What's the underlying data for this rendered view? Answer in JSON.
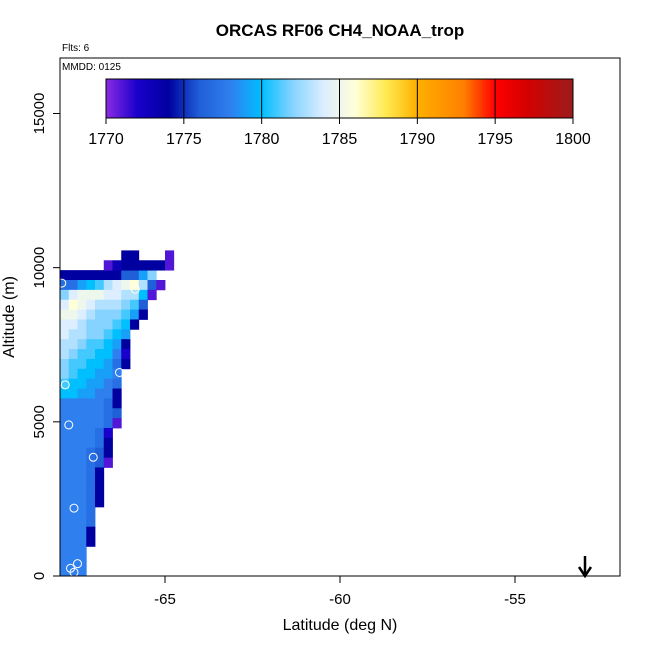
{
  "chart_data": {
    "type": "heatmap",
    "title": "ORCAS RF06 CH4_NOAA_trop",
    "flights_label": "Flts: 6",
    "date_label": "MMDD: 0125",
    "xlabel": "Latitude (deg N)",
    "ylabel": "Altitude (m)",
    "xlim": [
      -68,
      -52
    ],
    "ylim": [
      0,
      16800
    ],
    "x_ticks": [
      {
        "value": -65,
        "label": "-65"
      },
      {
        "value": -60,
        "label": "-60"
      },
      {
        "value": -55,
        "label": "-55"
      }
    ],
    "y_ticks": [
      {
        "value": 0,
        "label": "0"
      },
      {
        "value": 5000,
        "label": "5000"
      },
      {
        "value": 10000,
        "label": "10000"
      },
      {
        "value": 15000,
        "label": "15000"
      }
    ],
    "colorbar": {
      "min": 1770,
      "max": 1800,
      "ticks": [
        {
          "value": 1770,
          "label": "1770"
        },
        {
          "value": 1775,
          "label": "1775"
        },
        {
          "value": 1780,
          "label": "1780"
        },
        {
          "value": 1785,
          "label": "1785"
        },
        {
          "value": 1790,
          "label": "1790"
        },
        {
          "value": 1795,
          "label": "1795"
        },
        {
          "value": 1800,
          "label": "1800"
        }
      ],
      "stops": [
        {
          "value": 1770,
          "color": "#8a2be2"
        },
        {
          "value": 1772,
          "color": "#1a00cc"
        },
        {
          "value": 1774,
          "color": "#0000a0"
        },
        {
          "value": 1776,
          "color": "#1f5fd8"
        },
        {
          "value": 1778,
          "color": "#2f7fef"
        },
        {
          "value": 1780,
          "color": "#00bfff"
        },
        {
          "value": 1782,
          "color": "#87d3ff"
        },
        {
          "value": 1784,
          "color": "#dceeff"
        },
        {
          "value": 1786,
          "color": "#ffffd8"
        },
        {
          "value": 1788,
          "color": "#ffea50"
        },
        {
          "value": 1790,
          "color": "#ffb000"
        },
        {
          "value": 1793,
          "color": "#ff7f00"
        },
        {
          "value": 1795,
          "color": "#ff0000"
        },
        {
          "value": 1797,
          "color": "#d50000"
        },
        {
          "value": 1800,
          "color": "#9b1c1c"
        }
      ]
    },
    "cell_size": {
      "lat": 0.25,
      "alt": 320
    },
    "cells": [
      [
        -67.875,
        9600,
        1774
      ],
      [
        -67.625,
        9600,
        1774
      ],
      [
        -67.375,
        9600,
        1774
      ],
      [
        -67.125,
        9600,
        1774
      ],
      [
        -66.875,
        9600,
        1774
      ],
      [
        -66.625,
        9600,
        1774
      ],
      [
        -66.375,
        9600,
        1774
      ],
      [
        -66.125,
        9600,
        1776
      ],
      [
        -65.875,
        9600,
        1776
      ],
      [
        -65.625,
        9600,
        1779
      ],
      [
        -65.375,
        9600,
        1782
      ],
      [
        -66.625,
        9920,
        1771
      ],
      [
        -66.375,
        9920,
        1773
      ],
      [
        -66.125,
        9920,
        1774
      ],
      [
        -65.875,
        9920,
        1774
      ],
      [
        -65.625,
        9920,
        1774
      ],
      [
        -65.375,
        9920,
        1774
      ],
      [
        -65.125,
        9920,
        1774
      ],
      [
        -64.875,
        9920,
        1771
      ],
      [
        -66.125,
        10240,
        1774
      ],
      [
        -65.875,
        10240,
        1774
      ],
      [
        -64.875,
        10240,
        1771
      ],
      [
        -67.875,
        9280,
        1777
      ],
      [
        -67.625,
        9280,
        1777
      ],
      [
        -67.375,
        9280,
        1779
      ],
      [
        -67.125,
        9280,
        1780
      ],
      [
        -66.875,
        9280,
        1781
      ],
      [
        -66.625,
        9280,
        1783
      ],
      [
        -66.375,
        9280,
        1784
      ],
      [
        -66.125,
        9280,
        1785
      ],
      [
        -65.875,
        9280,
        1786
      ],
      [
        -65.625,
        9280,
        1783
      ],
      [
        -65.375,
        9280,
        1776
      ],
      [
        -65.125,
        9280,
        1771
      ],
      [
        -67.875,
        8960,
        1782
      ],
      [
        -67.625,
        8960,
        1784
      ],
      [
        -67.375,
        8960,
        1785
      ],
      [
        -67.125,
        8960,
        1785
      ],
      [
        -66.875,
        8960,
        1785
      ],
      [
        -66.625,
        8960,
        1784
      ],
      [
        -66.375,
        8960,
        1784
      ],
      [
        -66.125,
        8960,
        1783
      ],
      [
        -65.875,
        8960,
        1783
      ],
      [
        -65.625,
        8960,
        1780
      ],
      [
        -65.375,
        8960,
        1771
      ],
      [
        -67.875,
        8640,
        1784
      ],
      [
        -67.625,
        8640,
        1786
      ],
      [
        -67.375,
        8640,
        1785
      ],
      [
        -67.125,
        8640,
        1784
      ],
      [
        -66.875,
        8640,
        1783
      ],
      [
        -66.625,
        8640,
        1783
      ],
      [
        -66.375,
        8640,
        1783
      ],
      [
        -66.125,
        8640,
        1782
      ],
      [
        -65.875,
        8640,
        1781
      ],
      [
        -65.625,
        8640,
        1776
      ],
      [
        -67.875,
        8320,
        1785
      ],
      [
        -67.625,
        8320,
        1785
      ],
      [
        -67.375,
        8320,
        1784
      ],
      [
        -67.125,
        8320,
        1783
      ],
      [
        -66.875,
        8320,
        1782
      ],
      [
        -66.625,
        8320,
        1782
      ],
      [
        -66.375,
        8320,
        1782
      ],
      [
        -66.125,
        8320,
        1781
      ],
      [
        -65.875,
        8320,
        1779
      ],
      [
        -65.625,
        8320,
        1774
      ],
      [
        -67.875,
        8000,
        1784
      ],
      [
        -67.625,
        8000,
        1784
      ],
      [
        -67.375,
        8000,
        1783
      ],
      [
        -67.125,
        8000,
        1782
      ],
      [
        -66.875,
        8000,
        1782
      ],
      [
        -66.625,
        8000,
        1782
      ],
      [
        -66.375,
        8000,
        1781
      ],
      [
        -66.125,
        8000,
        1780
      ],
      [
        -65.875,
        8000,
        1774
      ],
      [
        -67.875,
        7680,
        1784
      ],
      [
        -67.625,
        7680,
        1783
      ],
      [
        -67.375,
        7680,
        1783
      ],
      [
        -67.125,
        7680,
        1782
      ],
      [
        -66.875,
        7680,
        1782
      ],
      [
        -66.625,
        7680,
        1781
      ],
      [
        -66.375,
        7680,
        1780
      ],
      [
        -66.125,
        7680,
        1779
      ],
      [
        -67.875,
        7360,
        1783
      ],
      [
        -67.625,
        7360,
        1783
      ],
      [
        -67.375,
        7360,
        1782
      ],
      [
        -67.125,
        7360,
        1781
      ],
      [
        -66.875,
        7360,
        1781
      ],
      [
        -66.625,
        7360,
        1780
      ],
      [
        -66.375,
        7360,
        1779
      ],
      [
        -66.125,
        7360,
        1774
      ],
      [
        -67.875,
        7040,
        1783
      ],
      [
        -67.625,
        7040,
        1782
      ],
      [
        -67.375,
        7040,
        1781
      ],
      [
        -67.125,
        7040,
        1781
      ],
      [
        -66.875,
        7040,
        1780
      ],
      [
        -66.625,
        7040,
        1780
      ],
      [
        -66.375,
        7040,
        1778
      ],
      [
        -66.125,
        7040,
        1772
      ],
      [
        -67.875,
        6720,
        1782
      ],
      [
        -67.625,
        6720,
        1781
      ],
      [
        -67.375,
        6720,
        1781
      ],
      [
        -67.125,
        6720,
        1780
      ],
      [
        -66.875,
        6720,
        1780
      ],
      [
        -66.625,
        6720,
        1779
      ],
      [
        -66.375,
        6720,
        1777
      ],
      [
        -66.125,
        6720,
        1774
      ],
      [
        -67.875,
        6400,
        1782
      ],
      [
        -67.625,
        6400,
        1781
      ],
      [
        -67.375,
        6400,
        1780
      ],
      [
        -67.125,
        6400,
        1780
      ],
      [
        -66.875,
        6400,
        1779
      ],
      [
        -66.625,
        6400,
        1779
      ],
      [
        -66.375,
        6400,
        1778
      ],
      [
        -67.875,
        6080,
        1781
      ],
      [
        -67.625,
        6080,
        1780
      ],
      [
        -67.375,
        6080,
        1780
      ],
      [
        -67.125,
        6080,
        1779
      ],
      [
        -66.875,
        6080,
        1779
      ],
      [
        -66.625,
        6080,
        1778
      ],
      [
        -66.375,
        6080,
        1777
      ],
      [
        -67.875,
        5760,
        1780
      ],
      [
        -67.625,
        5760,
        1780
      ],
      [
        -67.375,
        5760,
        1779
      ],
      [
        -67.125,
        5760,
        1779
      ],
      [
        -66.875,
        5760,
        1778
      ],
      [
        -66.625,
        5760,
        1778
      ],
      [
        -66.375,
        5760,
        1774
      ],
      [
        -67.875,
        5440,
        1778
      ],
      [
        -67.625,
        5440,
        1778
      ],
      [
        -67.375,
        5440,
        1778
      ],
      [
        -67.125,
        5440,
        1778
      ],
      [
        -66.875,
        5440,
        1778
      ],
      [
        -66.625,
        5440,
        1777
      ],
      [
        -66.375,
        5440,
        1774
      ],
      [
        -67.875,
        5120,
        1778
      ],
      [
        -67.625,
        5120,
        1778
      ],
      [
        -67.375,
        5120,
        1778
      ],
      [
        -67.125,
        5120,
        1778
      ],
      [
        -66.875,
        5120,
        1778
      ],
      [
        -66.625,
        5120,
        1777
      ],
      [
        -66.375,
        5120,
        1776
      ],
      [
        -67.875,
        4800,
        1778
      ],
      [
        -67.625,
        4800,
        1778
      ],
      [
        -67.375,
        4800,
        1778
      ],
      [
        -67.125,
        4800,
        1778
      ],
      [
        -66.875,
        4800,
        1778
      ],
      [
        -66.625,
        4800,
        1777
      ],
      [
        -66.375,
        4800,
        1771
      ],
      [
        -67.875,
        4480,
        1778
      ],
      [
        -67.625,
        4480,
        1778
      ],
      [
        -67.375,
        4480,
        1778
      ],
      [
        -67.125,
        4480,
        1778
      ],
      [
        -66.875,
        4480,
        1777
      ],
      [
        -66.625,
        4480,
        1772
      ],
      [
        -67.875,
        4160,
        1778
      ],
      [
        -67.625,
        4160,
        1778
      ],
      [
        -67.375,
        4160,
        1778
      ],
      [
        -67.125,
        4160,
        1778
      ],
      [
        -66.875,
        4160,
        1777
      ],
      [
        -66.625,
        4160,
        1774
      ],
      [
        -67.875,
        3840,
        1778
      ],
      [
        -67.625,
        3840,
        1778
      ],
      [
        -67.375,
        3840,
        1778
      ],
      [
        -67.125,
        3840,
        1777
      ],
      [
        -66.875,
        3840,
        1776
      ],
      [
        -66.625,
        3840,
        1774
      ],
      [
        -67.875,
        3520,
        1778
      ],
      [
        -67.625,
        3520,
        1778
      ],
      [
        -67.375,
        3520,
        1778
      ],
      [
        -67.125,
        3520,
        1777
      ],
      [
        -66.875,
        3520,
        1776
      ],
      [
        -66.625,
        3520,
        1771
      ],
      [
        -67.875,
        3200,
        1778
      ],
      [
        -67.625,
        3200,
        1778
      ],
      [
        -67.375,
        3200,
        1778
      ],
      [
        -67.125,
        3200,
        1777
      ],
      [
        -66.875,
        3200,
        1774
      ],
      [
        -67.875,
        2880,
        1778
      ],
      [
        -67.625,
        2880,
        1778
      ],
      [
        -67.375,
        2880,
        1778
      ],
      [
        -67.125,
        2880,
        1777
      ],
      [
        -66.875,
        2880,
        1774
      ],
      [
        -67.875,
        2560,
        1778
      ],
      [
        -67.625,
        2560,
        1778
      ],
      [
        -67.375,
        2560,
        1778
      ],
      [
        -67.125,
        2560,
        1777
      ],
      [
        -66.875,
        2560,
        1774
      ],
      [
        -67.875,
        2240,
        1778
      ],
      [
        -67.625,
        2240,
        1778
      ],
      [
        -67.375,
        2240,
        1778
      ],
      [
        -67.125,
        2240,
        1777
      ],
      [
        -66.875,
        2240,
        1774
      ],
      [
        -67.875,
        1920,
        1778
      ],
      [
        -67.625,
        1920,
        1778
      ],
      [
        -67.375,
        1920,
        1778
      ],
      [
        -67.125,
        1920,
        1777
      ],
      [
        -67.875,
        1600,
        1778
      ],
      [
        -67.625,
        1600,
        1778
      ],
      [
        -67.375,
        1600,
        1778
      ],
      [
        -67.125,
        1600,
        1777
      ],
      [
        -67.875,
        1280,
        1778
      ],
      [
        -67.625,
        1280,
        1778
      ],
      [
        -67.375,
        1280,
        1778
      ],
      [
        -67.125,
        1280,
        1774
      ],
      [
        -67.875,
        960,
        1778
      ],
      [
        -67.625,
        960,
        1778
      ],
      [
        -67.375,
        960,
        1778
      ],
      [
        -67.125,
        960,
        1774
      ],
      [
        -67.875,
        640,
        1778
      ],
      [
        -67.625,
        640,
        1778
      ],
      [
        -67.375,
        640,
        1778
      ],
      [
        -67.875,
        320,
        1778
      ],
      [
        -67.625,
        320,
        1778
      ],
      [
        -67.375,
        320,
        1778
      ],
      [
        -67.875,
        0,
        1778
      ],
      [
        -67.625,
        0,
        1778
      ],
      [
        -67.375,
        0,
        1778
      ]
    ],
    "observations": [
      [
        -67.95,
        9500
      ],
      [
        -65.85,
        9300
      ],
      [
        -67.85,
        6200
      ],
      [
        -66.3,
        6600
      ],
      [
        -67.75,
        4900
      ],
      [
        -67.05,
        3850
      ],
      [
        -67.6,
        2200
      ],
      [
        -67.5,
        400
      ],
      [
        -67.7,
        250
      ],
      [
        -67.6,
        120
      ]
    ],
    "arrow_latitude": -53.0
  }
}
